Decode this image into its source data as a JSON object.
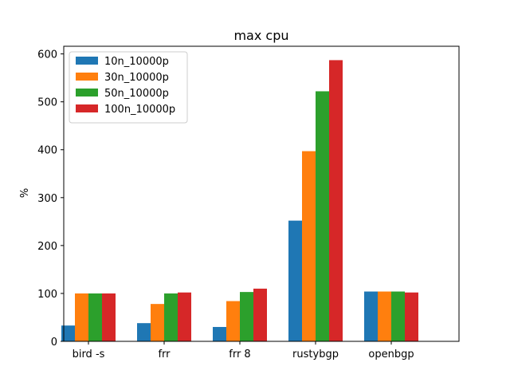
{
  "chart_data": {
    "type": "bar",
    "title": "max cpu",
    "xlabel": "",
    "ylabel": "%",
    "categories": [
      "bird -s",
      "frr",
      "frr 8",
      "rustybgp",
      "openbgp"
    ],
    "series": [
      {
        "name": "10n_10000p",
        "color": "#1f77b4",
        "values": [
          33,
          38,
          30,
          252,
          104
        ]
      },
      {
        "name": "30n_10000p",
        "color": "#ff7f0e",
        "values": [
          100,
          78,
          84,
          397,
          104
        ]
      },
      {
        "name": "50n_10000p",
        "color": "#2ca02c",
        "values": [
          100,
          100,
          103,
          522,
          104
        ]
      },
      {
        "name": "100n_10000p",
        "color": "#d62728",
        "values": [
          100,
          102,
          110,
          587,
          102
        ]
      }
    ],
    "ylim": [
      0,
      616
    ],
    "yticks": [
      0,
      100,
      200,
      300,
      400,
      500,
      600
    ],
    "grid": false,
    "legend_position": "upper-left"
  }
}
